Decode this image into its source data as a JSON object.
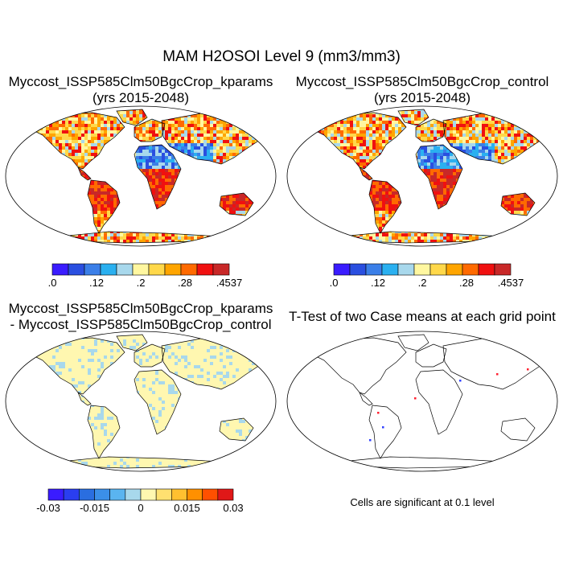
{
  "title": "MAM H2OSOI Level 9 (mm3/mm3)",
  "panels": [
    {
      "id": "kparams",
      "title_line1": "Myccost_ISSP585Clm50BgcCrop_kparams",
      "title_line2": "(yrs 2015-2048)"
    },
    {
      "id": "control",
      "title_line1": "Myccost_ISSP585Clm50BgcCrop_control",
      "title_line2": "(yrs 2015-2048)"
    },
    {
      "id": "difference",
      "title_line1": "Myccost_ISSP585Clm50BgcCrop_kparams",
      "title_line2": "- Myccost_ISSP585Clm50BgcCrop_control"
    },
    {
      "id": "ttest",
      "title_line1": "T-Test of two Case means at each grid point",
      "title_line2": ""
    }
  ],
  "colorbar_abs": {
    "colors": [
      "#3a1cff",
      "#2a4fe0",
      "#3b7fe8",
      "#2ab0f0",
      "#a8d8ec",
      "#fff7a0",
      "#ffd84a",
      "#ffa500",
      "#ff6a00",
      "#f01010",
      "#c82828"
    ],
    "labels": [
      ".0",
      ".12",
      ".2",
      ".28",
      ".4537"
    ]
  },
  "colorbar_diff": {
    "colors": [
      "#3a1cff",
      "#2a3ef0",
      "#2a6ee0",
      "#3b8fe8",
      "#5ab4f0",
      "#a8d8ec",
      "#fff7b0",
      "#ffe070",
      "#ffc030",
      "#ff9000",
      "#ff5000",
      "#e01818"
    ],
    "labels": [
      "-0.03",
      "-0.015",
      "0",
      "0.015",
      "0.03"
    ]
  },
  "significance_note": "Cells are significant at 0.1 level"
}
